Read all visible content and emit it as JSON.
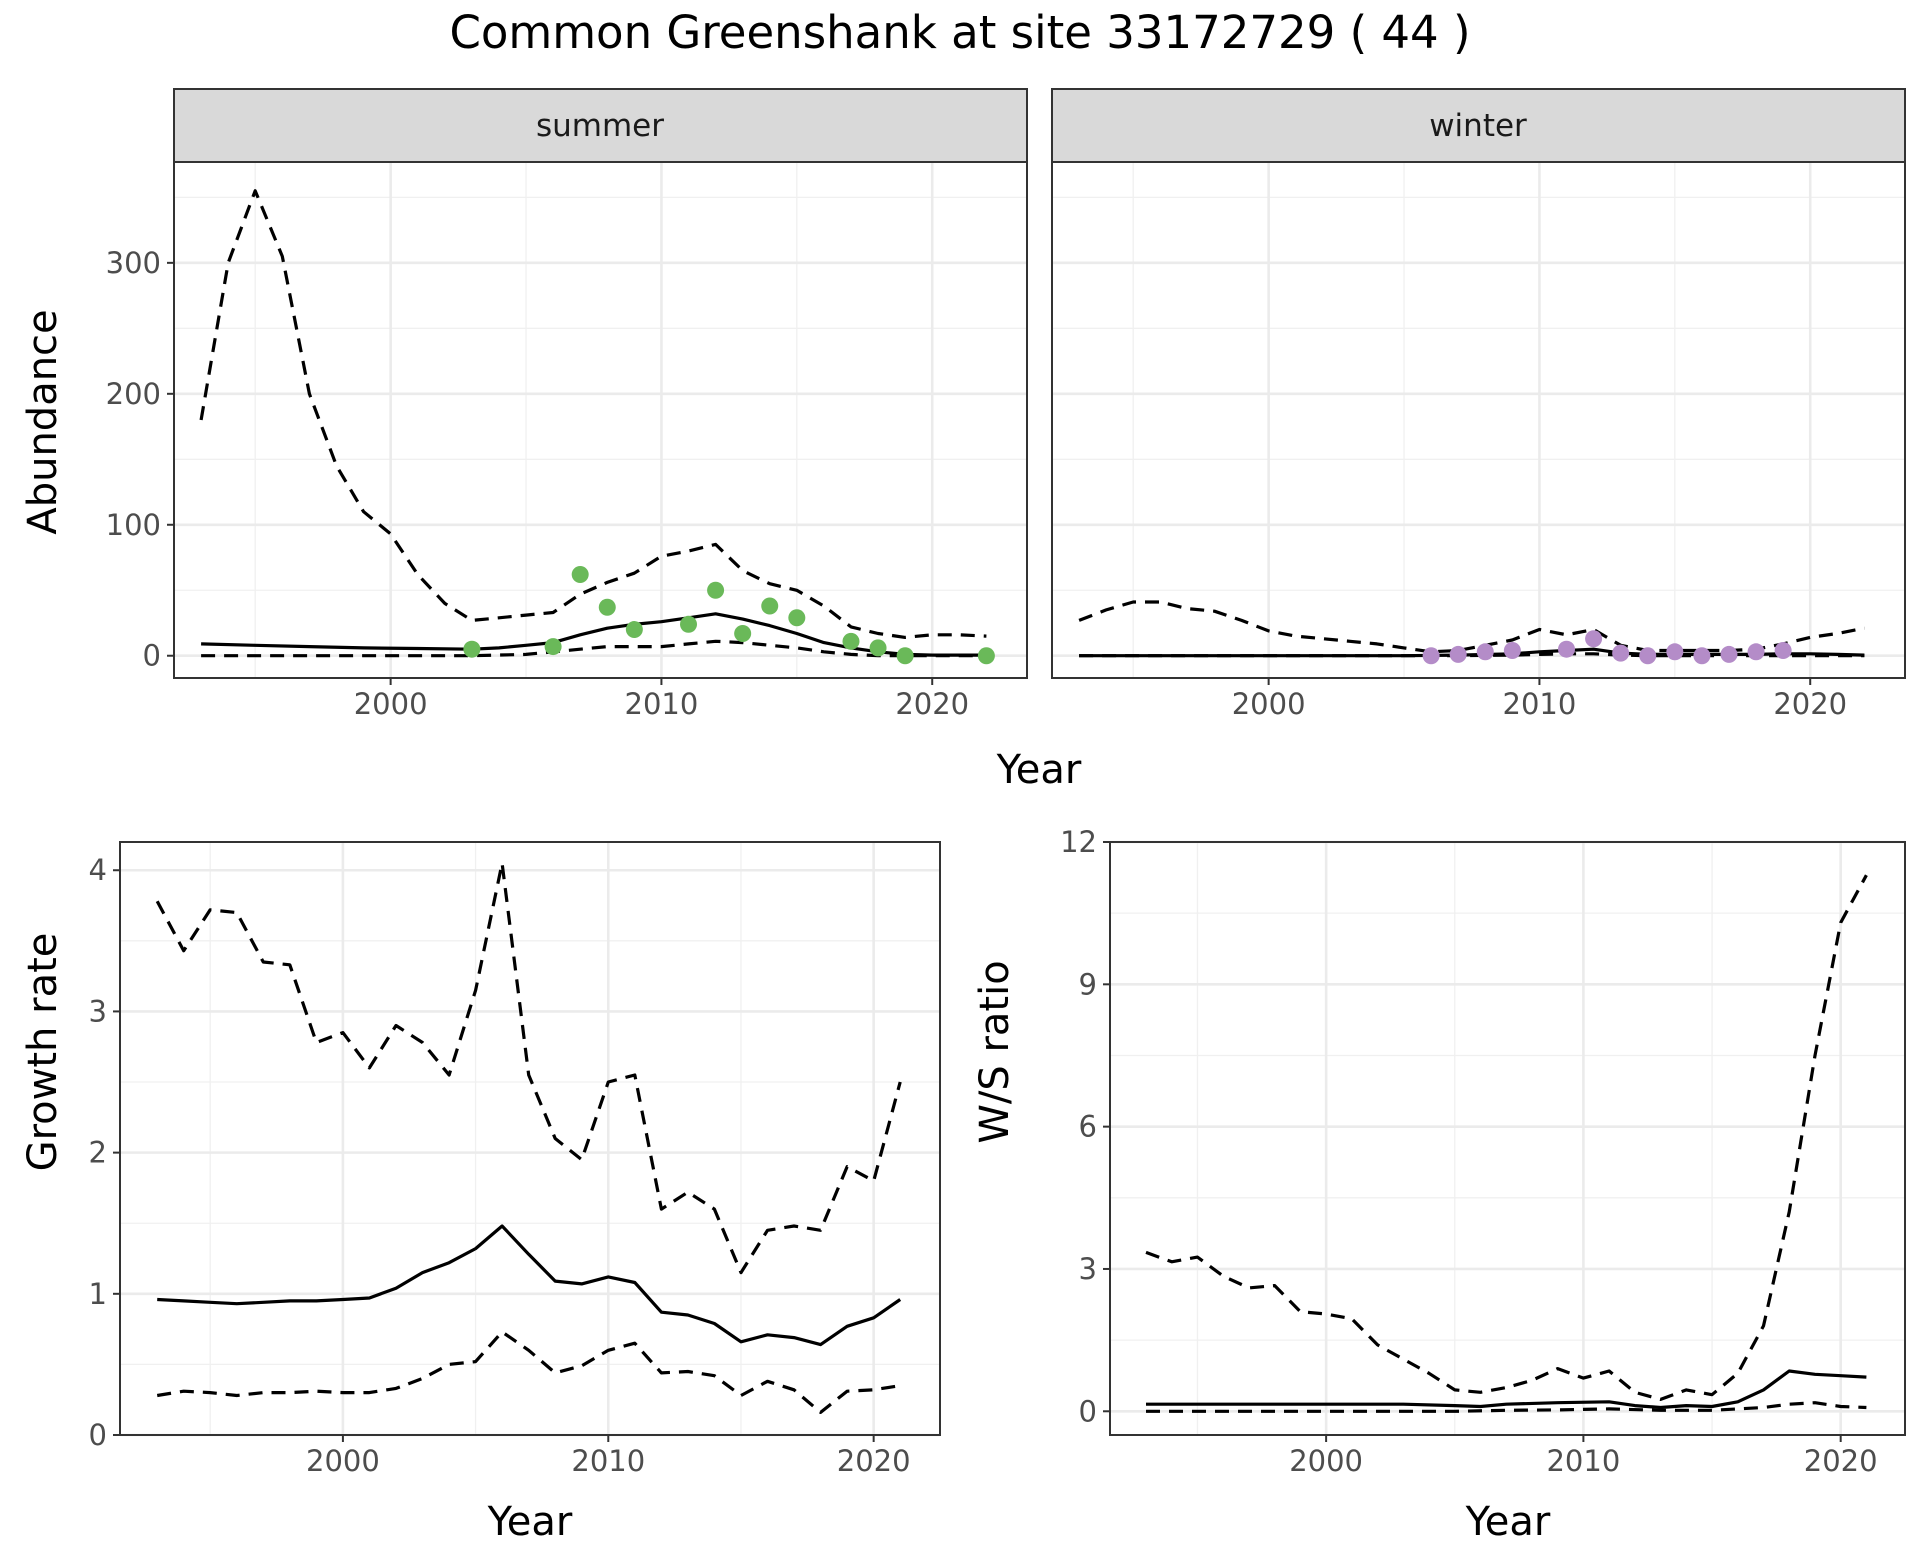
{
  "title": "Common Greenshank at site 33172729 ( 44 )",
  "chart_data": [
    {
      "id": "abundance",
      "type": "line",
      "facets": [
        "summer",
        "winter"
      ],
      "xlabel": "Year",
      "ylabel": "Abundance",
      "xlim": [
        1992,
        2023.5
      ],
      "ylim": [
        -17,
        377
      ],
      "xticks": [
        2000,
        2010,
        2020
      ],
      "yticks": [
        0,
        100,
        200,
        300
      ],
      "grid": true,
      "panels": [
        {
          "facet": "summer",
          "point_color": "#6ab959",
          "series": [
            {
              "role": "upper",
              "style": "dashed",
              "x": [
                1993,
                1994,
                1995,
                1996,
                1997,
                1998,
                1999,
                2000,
                2001,
                2002,
                2003,
                2004,
                2005,
                2006,
                2007,
                2008,
                2009,
                2010,
                2011,
                2012,
                2013,
                2014,
                2015,
                2016,
                2017,
                2018,
                2019,
                2020,
                2021,
                2022
              ],
              "y": [
                180,
                300,
                355,
                305,
                200,
                145,
                110,
                93,
                62,
                40,
                27,
                29,
                31,
                33,
                47,
                56,
                63,
                76,
                80,
                85,
                65,
                55,
                50,
                38,
                22,
                17,
                14,
                16,
                16,
                15
              ]
            },
            {
              "role": "median",
              "style": "solid",
              "x": [
                1993,
                1995,
                1997,
                1999,
                2001,
                2003,
                2004,
                2005,
                2006,
                2007,
                2008,
                2009,
                2010,
                2011,
                2012,
                2013,
                2014,
                2015,
                2016,
                2017,
                2018,
                2019,
                2020,
                2021,
                2022
              ],
              "y": [
                9,
                8,
                7,
                6,
                5.5,
                5,
                6,
                8,
                10,
                16,
                21,
                24,
                26,
                29,
                32,
                28,
                23,
                17,
                10,
                6,
                3,
                1,
                0.5,
                0.5,
                0.5
              ]
            },
            {
              "role": "lower",
              "style": "dashed",
              "x": [
                1993,
                1995,
                1997,
                1999,
                2001,
                2003,
                2005,
                2006,
                2007,
                2008,
                2009,
                2010,
                2011,
                2012,
                2013,
                2014,
                2015,
                2016,
                2017,
                2018,
                2019,
                2020,
                2021,
                2022
              ],
              "y": [
                0,
                0,
                0,
                0,
                0,
                0,
                1,
                3,
                5,
                7,
                7,
                7,
                9,
                11,
                10,
                8,
                6,
                3,
                1,
                0,
                0,
                0,
                0,
                0
              ]
            }
          ],
          "points": {
            "x": [
              2003,
              2006,
              2007,
              2008,
              2009,
              2011,
              2012,
              2013,
              2014,
              2015,
              2017,
              2018,
              2019,
              2022
            ],
            "y": [
              5,
              7,
              62,
              37,
              20,
              24,
              50,
              17,
              38,
              29,
              11,
              6,
              0,
              0
            ]
          }
        },
        {
          "facet": "winter",
          "point_color": "#b48cc8",
          "series": [
            {
              "role": "upper",
              "style": "dashed",
              "x": [
                1993,
                1994,
                1995,
                1996,
                1997,
                1998,
                1999,
                2000,
                2001,
                2002,
                2003,
                2004,
                2005,
                2006,
                2007,
                2008,
                2009,
                2010,
                2011,
                2012,
                2013,
                2014,
                2015,
                2016,
                2017,
                2018,
                2019,
                2020,
                2021,
                2022
              ],
              "y": [
                27,
                35,
                41,
                41,
                36,
                34,
                27,
                19,
                15,
                13,
                11,
                9,
                6,
                3,
                4,
                8,
                12,
                20,
                16,
                20,
                8,
                4,
                4,
                4,
                4,
                5,
                9,
                14,
                17,
                21
              ]
            },
            {
              "role": "median",
              "style": "solid",
              "x": [
                1993,
                1997,
                2001,
                2005,
                2007,
                2009,
                2010,
                2011,
                2012,
                2013,
                2014,
                2015,
                2016,
                2017,
                2018,
                2019,
                2020,
                2021,
                2022
              ],
              "y": [
                0,
                0,
                0,
                0,
                0.5,
                1.5,
                3,
                4,
                5,
                2,
                1,
                1,
                1,
                1,
                1,
                1.5,
                1.5,
                1,
                0.5
              ]
            },
            {
              "role": "lower",
              "style": "dashed",
              "x": [
                1993,
                1997,
                2001,
                2005,
                2007,
                2009,
                2010,
                2011,
                2012,
                2013,
                2014,
                2015,
                2016,
                2017,
                2018,
                2019,
                2020,
                2021,
                2022
              ],
              "y": [
                0,
                0,
                0,
                0,
                0,
                0.5,
                1,
                1.5,
                1.5,
                0.5,
                0,
                0,
                0,
                0,
                0,
                0,
                0,
                0,
                0
              ]
            }
          ],
          "points": {
            "x": [
              2006,
              2007,
              2008,
              2009,
              2011,
              2012,
              2013,
              2014,
              2015,
              2016,
              2017,
              2018,
              2019
            ],
            "y": [
              0,
              1,
              3,
              4,
              5,
              13,
              2,
              0,
              3,
              0,
              1,
              3,
              4
            ]
          }
        }
      ]
    },
    {
      "id": "growth",
      "type": "line",
      "xlabel": "Year",
      "ylabel": "Growth rate",
      "xlim": [
        1991.6,
        2022.5
      ],
      "ylim": [
        0,
        4.2
      ],
      "xticks": [
        2000,
        2010,
        2020
      ],
      "yticks": [
        0,
        1,
        2,
        3,
        4
      ],
      "grid": true,
      "series": [
        {
          "role": "upper",
          "style": "dashed",
          "x": [
            1993,
            1994,
            1995,
            1996,
            1997,
            1998,
            1999,
            2000,
            2001,
            2002,
            2003,
            2004,
            2005,
            2006,
            2007,
            2008,
            2009,
            2010,
            2011,
            2012,
            2013,
            2014,
            2015,
            2016,
            2017,
            2018,
            2019,
            2020,
            2021
          ],
          "y": [
            3.78,
            3.43,
            3.72,
            3.7,
            3.35,
            3.33,
            2.78,
            2.85,
            2.6,
            2.9,
            2.78,
            2.55,
            3.15,
            4.05,
            2.55,
            2.1,
            1.95,
            2.5,
            2.55,
            1.6,
            1.72,
            1.6,
            1.15,
            1.45,
            1.48,
            1.45,
            1.9,
            1.8,
            2.5
          ]
        },
        {
          "role": "median",
          "style": "solid",
          "x": [
            1993,
            1994,
            1995,
            1996,
            1997,
            1998,
            1999,
            2000,
            2001,
            2002,
            2003,
            2004,
            2005,
            2006,
            2007,
            2008,
            2009,
            2010,
            2011,
            2012,
            2013,
            2014,
            2015,
            2016,
            2017,
            2018,
            2019,
            2020,
            2021
          ],
          "y": [
            0.96,
            0.95,
            0.94,
            0.93,
            0.94,
            0.95,
            0.95,
            0.96,
            0.97,
            1.04,
            1.15,
            1.22,
            1.32,
            1.48,
            1.28,
            1.09,
            1.07,
            1.12,
            1.08,
            0.87,
            0.85,
            0.79,
            0.66,
            0.71,
            0.69,
            0.64,
            0.77,
            0.83,
            0.96
          ]
        },
        {
          "role": "lower",
          "style": "dashed",
          "x": [
            1993,
            1994,
            1995,
            1996,
            1997,
            1998,
            1999,
            2000,
            2001,
            2002,
            2003,
            2004,
            2005,
            2006,
            2007,
            2008,
            2009,
            2010,
            2011,
            2012,
            2013,
            2014,
            2015,
            2016,
            2017,
            2018,
            2019,
            2020,
            2021
          ],
          "y": [
            0.28,
            0.31,
            0.3,
            0.28,
            0.3,
            0.3,
            0.31,
            0.3,
            0.3,
            0.33,
            0.4,
            0.5,
            0.52,
            0.73,
            0.6,
            0.44,
            0.49,
            0.6,
            0.65,
            0.44,
            0.45,
            0.42,
            0.28,
            0.38,
            0.32,
            0.16,
            0.31,
            0.32,
            0.35
          ]
        }
      ]
    },
    {
      "id": "ws_ratio",
      "type": "line",
      "xlabel": "Year",
      "ylabel": "W/S ratio",
      "xlim": [
        1991.6,
        2022.5
      ],
      "ylim": [
        -0.5,
        12
      ],
      "xticks": [
        2000,
        2010,
        2020
      ],
      "yticks": [
        0,
        3,
        6,
        9,
        12
      ],
      "grid": true,
      "series": [
        {
          "role": "upper",
          "style": "dashed",
          "x": [
            1993,
            1994,
            1995,
            1996,
            1997,
            1998,
            1999,
            2000,
            2001,
            2002,
            2003,
            2004,
            2005,
            2006,
            2007,
            2008,
            2009,
            2010,
            2011,
            2012,
            2013,
            2014,
            2015,
            2016,
            2017,
            2018,
            2019,
            2020,
            2021
          ],
          "y": [
            3.35,
            3.15,
            3.25,
            2.85,
            2.6,
            2.65,
            2.1,
            2.05,
            1.95,
            1.4,
            1.1,
            0.8,
            0.45,
            0.4,
            0.5,
            0.65,
            0.9,
            0.7,
            0.85,
            0.4,
            0.25,
            0.45,
            0.35,
            0.8,
            1.8,
            4.2,
            7.5,
            10.3,
            11.3
          ]
        },
        {
          "role": "median",
          "style": "solid",
          "x": [
            1993,
            1995,
            1997,
            1999,
            2001,
            2003,
            2005,
            2006,
            2007,
            2009,
            2011,
            2012,
            2013,
            2014,
            2015,
            2016,
            2017,
            2018,
            2019,
            2020,
            2021
          ],
          "y": [
            0.15,
            0.15,
            0.15,
            0.15,
            0.15,
            0.15,
            0.12,
            0.1,
            0.15,
            0.18,
            0.2,
            0.12,
            0.08,
            0.12,
            0.1,
            0.2,
            0.45,
            0.85,
            0.78,
            0.75,
            0.72
          ]
        },
        {
          "role": "lower",
          "style": "dashed",
          "x": [
            1993,
            1995,
            1997,
            1999,
            2001,
            2003,
            2005,
            2007,
            2009,
            2011,
            2013,
            2015,
            2017,
            2018,
            2019,
            2020,
            2021
          ],
          "y": [
            0,
            0,
            0,
            0,
            0,
            0,
            0,
            0.02,
            0.03,
            0.05,
            0.02,
            0.02,
            0.08,
            0.15,
            0.18,
            0.1,
            0.08
          ]
        }
      ]
    }
  ]
}
